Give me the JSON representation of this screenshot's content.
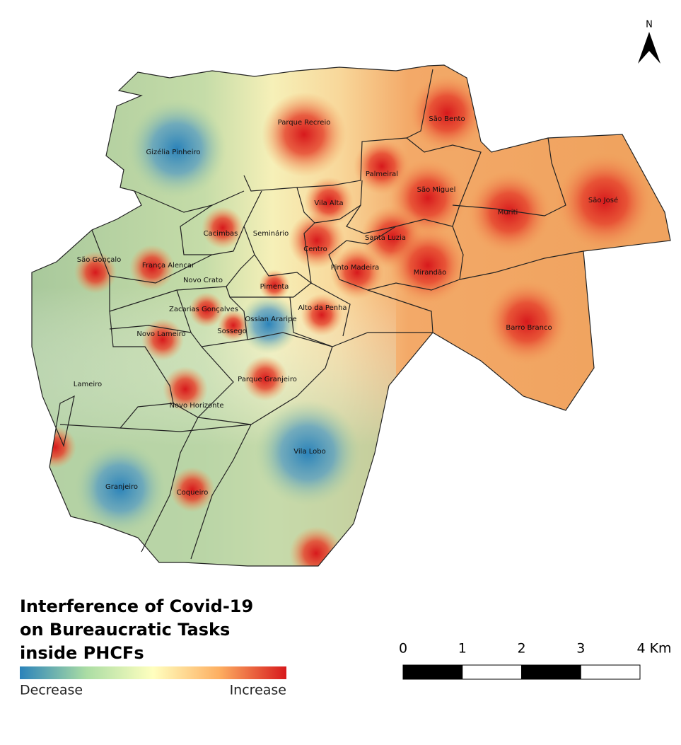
{
  "north_label": "N",
  "neighborhoods": [
    "Parque Recreio",
    "São Bento",
    "Gizélia Pinheiro",
    "Palmeiral",
    "São Miguel",
    "São José",
    "Muriti",
    "Vila Alta",
    "Cacimbas",
    "Seminário",
    "Santa Luzia",
    "Centro",
    "São Gonçalo",
    "França Alencar",
    "Pinto Madeira",
    "Mirandão",
    "Novo Crato",
    "Pimenta",
    "Alto da Penha",
    "Zacarias Gonçalves",
    "Ossian Araripe",
    "Barro Branco",
    "Sossego",
    "Novo Lameiro",
    "Parque Granjeiro",
    "Lameiro",
    "Novo Horizonte",
    "Vila Lobo",
    "Granjeiro",
    "Coqueiro"
  ],
  "legend": {
    "title_lines": [
      "Interference of Covid-19",
      "on Bureaucratic Tasks",
      "inside PHCFs"
    ],
    "low_label": "Decrease",
    "high_label": "Increase"
  },
  "scale_bar": {
    "labels": [
      "0",
      "1",
      "2",
      "3",
      "4 Km"
    ]
  }
}
